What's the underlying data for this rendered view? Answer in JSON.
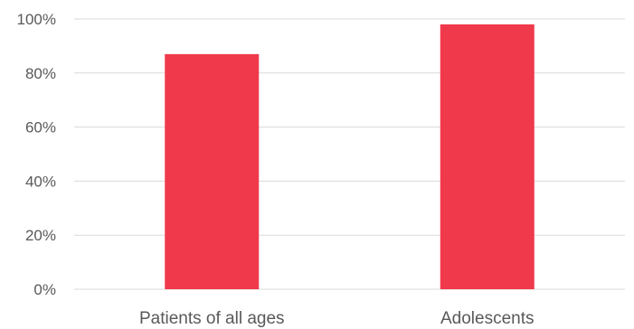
{
  "chart_data": {
    "type": "bar",
    "categories": [
      "Patients of all ages",
      "Adolescents"
    ],
    "values": [
      87,
      98
    ],
    "y_unit": "%",
    "ylim": [
      0,
      100
    ],
    "yticks": [
      0,
      20,
      40,
      60,
      80,
      100
    ],
    "ytick_labels": [
      "0%",
      "20%",
      "40%",
      "60%",
      "80%",
      "100%"
    ],
    "grid": true,
    "legend": "none",
    "bar_color": "#f0394b",
    "grid_color": "#d9d9d9",
    "text_color": "#595959"
  }
}
